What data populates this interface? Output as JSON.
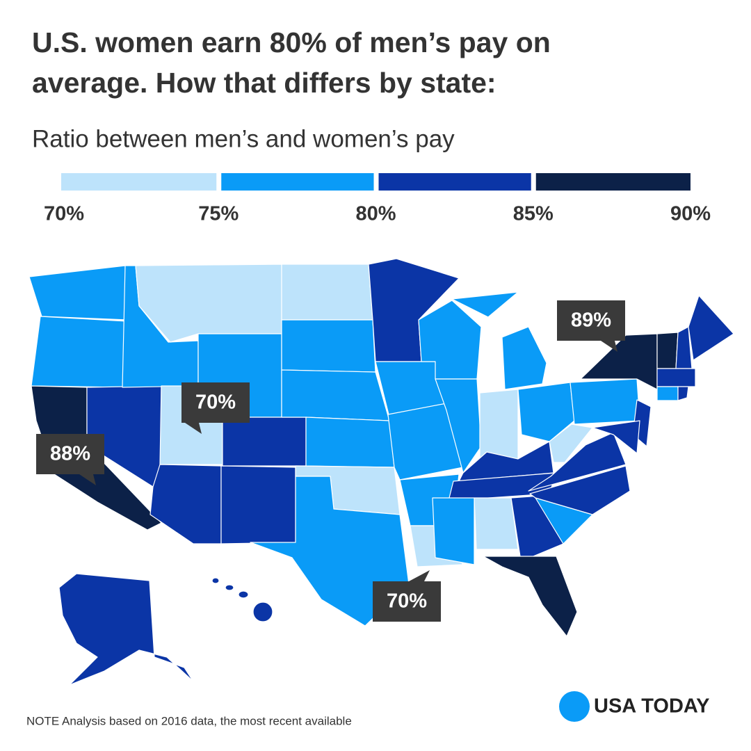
{
  "title": "U.S. women earn 80% of men’s pay on average. How that differs by state:",
  "subtitle": "Ratio between men’s and women’s pay",
  "legend": {
    "ticks": [
      {
        "value": 70,
        "label": "70%"
      },
      {
        "value": 75,
        "label": "75%"
      },
      {
        "value": 80,
        "label": "80%"
      },
      {
        "value": 85,
        "label": "85%"
      },
      {
        "value": 90,
        "label": "90%"
      }
    ],
    "colors": [
      "#bde3fb",
      "#0a9bf7",
      "#0b35a6",
      "#0c2148"
    ]
  },
  "callouts": [
    {
      "label": "89%"
    },
    {
      "label": "70%"
    },
    {
      "label": "88%"
    },
    {
      "label": "70%"
    }
  ],
  "note": "NOTE Analysis based on 2016 data, the most recent available",
  "logo": "USA TODAY"
}
